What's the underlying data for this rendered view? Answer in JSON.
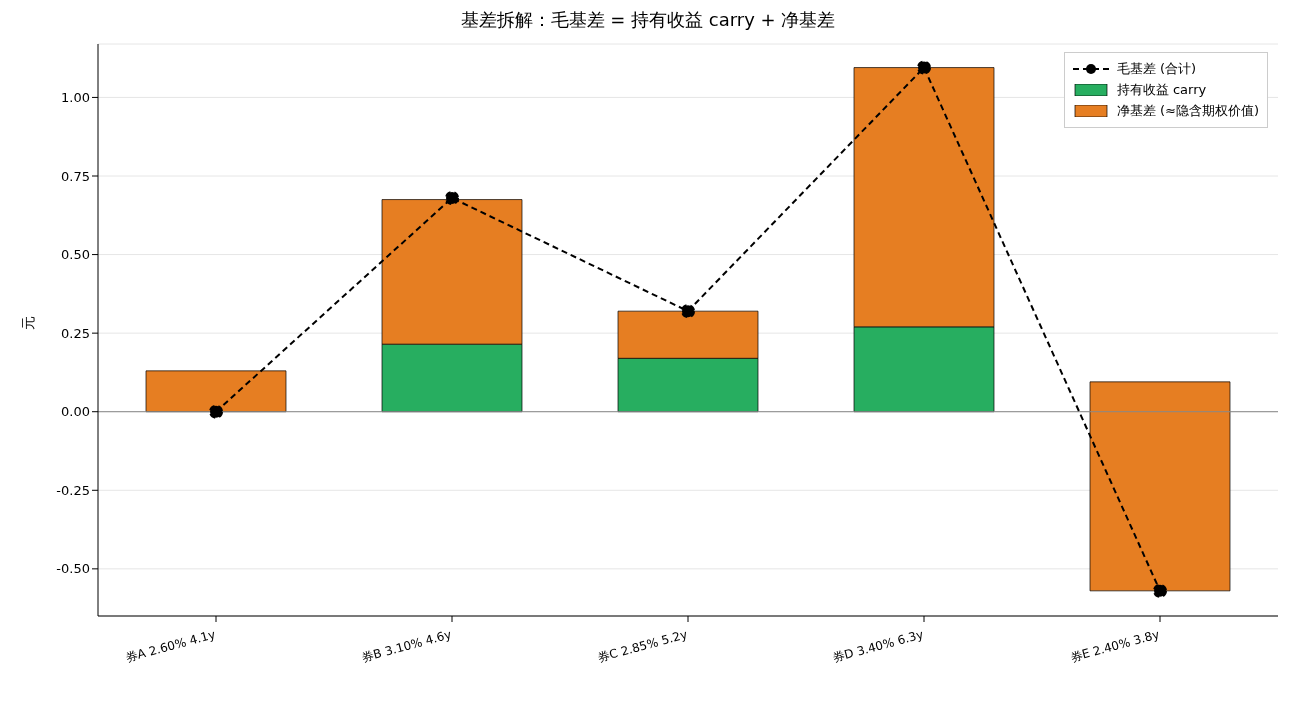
{
  "chart_data": {
    "type": "bar",
    "stacked": true,
    "title": "基差拆解：毛基差 = 持有收益 carry + 净基差",
    "ylabel": "元",
    "categories": [
      "券A 2.60% 4.1y",
      "券B 3.10% 4.6y",
      "券C 2.85% 5.2y",
      "券D 3.40% 6.3y",
      "券E 2.40% 3.8y"
    ],
    "series": [
      {
        "name": "毛基差 (合计)",
        "type": "line",
        "color": "#000000",
        "marker": "circle",
        "line_style": "dashed",
        "values": [
          0,
          0.68,
          0.32,
          1.095,
          -0.57
        ]
      },
      {
        "name": "持有收益 carry",
        "type": "bar",
        "color": "#27ae60",
        "values": [
          null,
          0.215,
          0.17,
          0.27,
          null
        ]
      },
      {
        "name": "净基差 (≈隐含期权价值)",
        "color": "#e67e22",
        "base": [
          0.13,
          0.215,
          0.17,
          0.27,
          0.095
        ],
        "values": [
          -0.13,
          0.46,
          0.15,
          0.825,
          -0.665
        ]
      }
    ],
    "ylim": [
      -0.65,
      1.17
    ],
    "yticks": [
      {
        "value": -0.5,
        "label": "-0.50"
      },
      {
        "value": -0.25,
        "label": "-0.25"
      },
      {
        "value": 0,
        "label": "0.00"
      },
      {
        "value": 0.25,
        "label": "0.25"
      },
      {
        "value": 0.5,
        "label": "0.50"
      },
      {
        "value": 0.75,
        "label": "0.75"
      },
      {
        "value": 1,
        "label": "1.00"
      }
    ],
    "ref_lines": [
      {
        "axis": "y",
        "value": 0,
        "color": "#888888"
      }
    ],
    "grid": "y",
    "legend": "top right"
  }
}
